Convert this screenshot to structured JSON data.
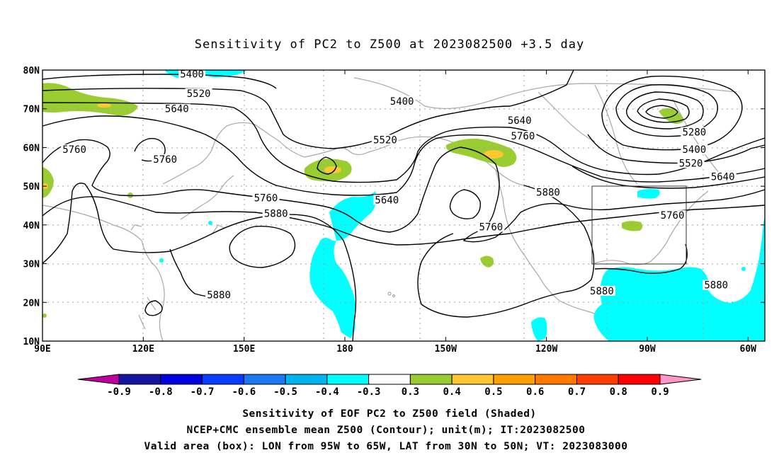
{
  "title": "Sensitivity of PC2 to Z500 at 2023082500 +3.5 day",
  "map": {
    "lon_range": [
      90,
      305
    ],
    "lat_range": [
      10,
      80
    ],
    "lon_ticks": [
      {
        "lon": 90,
        "label": "90E"
      },
      {
        "lon": 120,
        "label": "120E"
      },
      {
        "lon": 150,
        "label": "150E"
      },
      {
        "lon": 180,
        "label": "180"
      },
      {
        "lon": 210,
        "label": "150W"
      },
      {
        "lon": 240,
        "label": "120W"
      },
      {
        "lon": 270,
        "label": "90W"
      },
      {
        "lon": 300,
        "label": "60W"
      }
    ],
    "lat_ticks": [
      {
        "lat": 10,
        "label": "10N"
      },
      {
        "lat": 20,
        "label": "20N"
      },
      {
        "lat": 30,
        "label": "30N"
      },
      {
        "lat": 40,
        "label": "40N"
      },
      {
        "lat": 50,
        "label": "50N"
      },
      {
        "lat": 60,
        "label": "60N"
      },
      {
        "lat": 70,
        "label": "70N"
      },
      {
        "lat": 80,
        "label": "80N"
      }
    ],
    "grid": "dotted",
    "valid_box": {
      "lon": [
        265,
        295
      ],
      "lat": [
        30,
        50
      ]
    },
    "contour_labels": [
      {
        "text": "5400",
        "lon": 134.5,
        "lat": 79
      },
      {
        "text": "5520",
        "lon": 136.5,
        "lat": 74
      },
      {
        "text": "5640",
        "lon": 130,
        "lat": 70
      },
      {
        "text": "5400",
        "lon": 197,
        "lat": 72
      },
      {
        "text": "5760",
        "lon": 99.5,
        "lat": 59.5
      },
      {
        "text": "5760",
        "lon": 126.5,
        "lat": 57
      },
      {
        "text": "5520",
        "lon": 192,
        "lat": 62
      },
      {
        "text": "5640",
        "lon": 232,
        "lat": 67
      },
      {
        "text": "5760",
        "lon": 233,
        "lat": 63
      },
      {
        "text": "5280",
        "lon": 284,
        "lat": 64
      },
      {
        "text": "5400",
        "lon": 284,
        "lat": 59.5
      },
      {
        "text": "5520",
        "lon": 283,
        "lat": 56
      },
      {
        "text": "5640",
        "lon": 292.5,
        "lat": 52.5
      },
      {
        "text": "5760",
        "lon": 156.5,
        "lat": 47
      },
      {
        "text": "5640",
        "lon": 192.5,
        "lat": 46.5
      },
      {
        "text": "5880",
        "lon": 240.5,
        "lat": 48.5
      },
      {
        "text": "5880",
        "lon": 159.5,
        "lat": 43
      },
      {
        "text": "5760",
        "lon": 277.5,
        "lat": 42.5
      },
      {
        "text": "5760",
        "lon": 223.5,
        "lat": 39.5
      },
      {
        "text": "5880",
        "lon": 290.5,
        "lat": 24.5
      },
      {
        "text": "5880",
        "lon": 256.5,
        "lat": 23
      },
      {
        "text": "5880",
        "lon": 142.5,
        "lat": 22
      }
    ]
  },
  "colorbar": {
    "colors": [
      "#c000a0",
      "#1414a0",
      "#0000e0",
      "#0a3cff",
      "#1e78f0",
      "#00b4f0",
      "#00ffff",
      "#ffffff",
      "#9acd32",
      "#ffc832",
      "#ffa000",
      "#ff7800",
      "#ff3c00",
      "#ff0000",
      "#ff96c8"
    ],
    "labels": [
      "-0.9",
      "-0.8",
      "-0.7",
      "-0.6",
      "-0.5",
      "-0.4",
      "-0.3",
      "0.3",
      "0.4",
      "0.5",
      "0.6",
      "0.7",
      "0.8",
      "0.9"
    ]
  },
  "captions": [
    "Sensitivity of EOF PC2 to Z500 field (Shaded)",
    "NCEP+CMC ensemble mean Z500 (Contour); unit(m); IT:2023082500",
    "Valid area (box): LON from 95W to 65W, LAT from 30N to 50N; VT: 2023083000"
  ]
}
